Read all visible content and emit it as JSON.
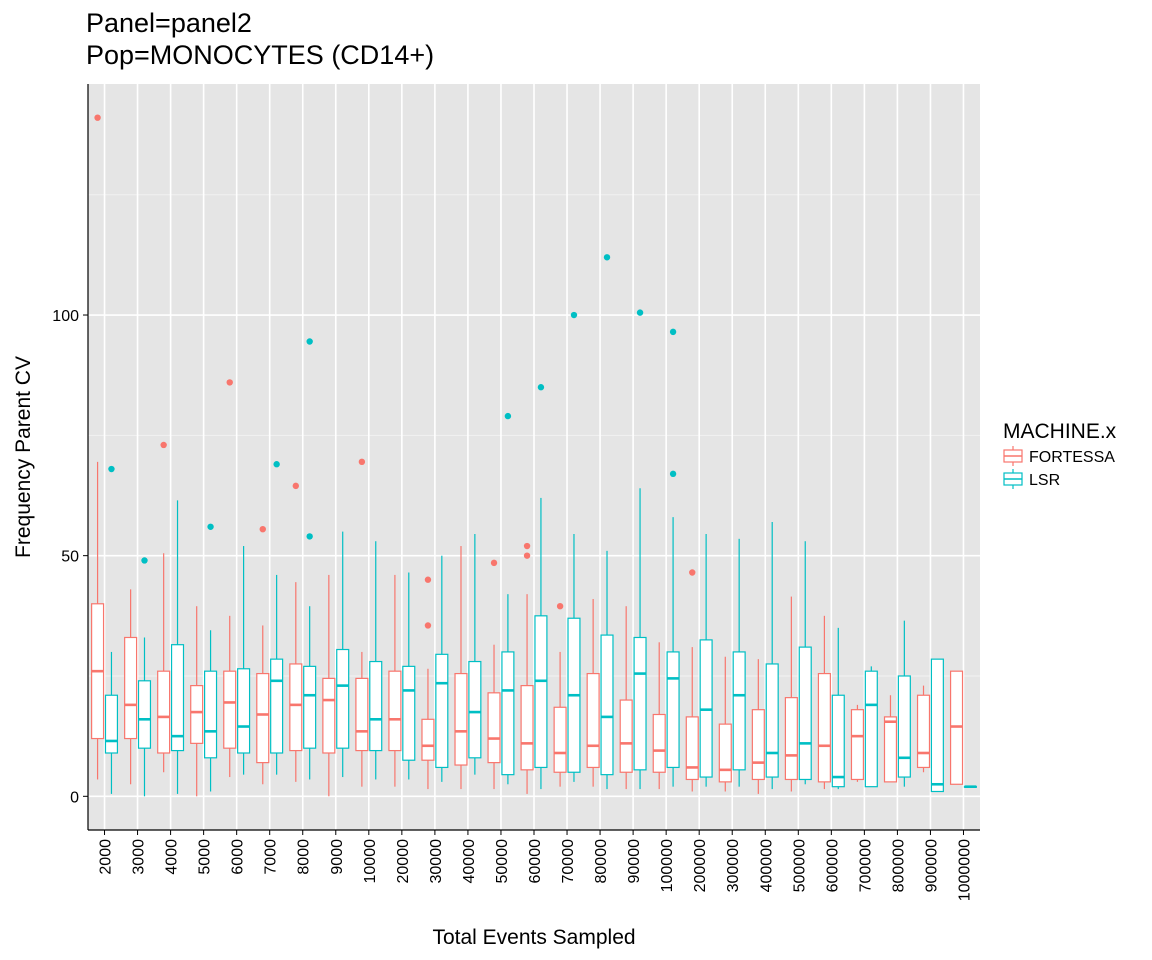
{
  "chart_data": {
    "type": "boxplot",
    "title": "Panel=panel2",
    "subtitle": "Pop=MONOCYTES (CD14+)",
    "xlabel": "Total Events Sampled",
    "ylabel": "Frequency Parent CV",
    "ylim": [
      -7,
      148
    ],
    "yticks": [
      0,
      50,
      100
    ],
    "grid": true,
    "legend": {
      "title": "MACHINE.x",
      "position": "right"
    },
    "categories": [
      "2000",
      "3000",
      "4000",
      "5000",
      "6000",
      "7000",
      "8000",
      "9000",
      "10000",
      "20000",
      "30000",
      "40000",
      "50000",
      "60000",
      "70000",
      "80000",
      "90000",
      "100000",
      "200000",
      "300000",
      "400000",
      "500000",
      "600000",
      "700000",
      "800000",
      "900000",
      "1000000"
    ],
    "colors": {
      "FORTESSA": "#F8766D",
      "LSR": "#00BFC4",
      "panel": "#E5E5E5",
      "grid_major": "#FFFFFF",
      "grid_minor": "#F2F2F2"
    },
    "series": [
      {
        "name": "FORTESSA",
        "boxes": [
          {
            "min": 3.5,
            "q1": 12,
            "median": 26,
            "q3": 40,
            "max": 69.5,
            "outliers": [
              141
            ]
          },
          {
            "min": 2.5,
            "q1": 12,
            "median": 19,
            "q3": 33,
            "max": 43,
            "outliers": []
          },
          {
            "min": 5,
            "q1": 9,
            "median": 16.5,
            "q3": 26,
            "max": 50.5,
            "outliers": [
              73
            ]
          },
          {
            "min": 0,
            "q1": 11,
            "median": 17.5,
            "q3": 23,
            "max": 39.5,
            "outliers": []
          },
          {
            "min": 4,
            "q1": 10,
            "median": 19.5,
            "q3": 26,
            "max": 37.5,
            "outliers": [
              86
            ]
          },
          {
            "min": 2.5,
            "q1": 7,
            "median": 17,
            "q3": 25.5,
            "max": 35.5,
            "outliers": [
              55.5
            ]
          },
          {
            "min": 3,
            "q1": 9.5,
            "median": 19,
            "q3": 27.5,
            "max": 44.5,
            "outliers": [
              64.5
            ]
          },
          {
            "min": 0,
            "q1": 9,
            "median": 20,
            "q3": 24.5,
            "max": 46,
            "outliers": []
          },
          {
            "min": 2,
            "q1": 9.5,
            "median": 13.5,
            "q3": 24.5,
            "max": 30,
            "outliers": [
              69.5
            ]
          },
          {
            "min": 2,
            "q1": 9.5,
            "median": 16,
            "q3": 26,
            "max": 46,
            "outliers": []
          },
          {
            "min": 1.5,
            "q1": 7.5,
            "median": 10.5,
            "q3": 16,
            "max": 26.5,
            "outliers": [
              35.5,
              45
            ]
          },
          {
            "min": 1.5,
            "q1": 6.5,
            "median": 13.5,
            "q3": 25.5,
            "max": 52,
            "outliers": []
          },
          {
            "min": 1.5,
            "q1": 7,
            "median": 12,
            "q3": 21.5,
            "max": 31.5,
            "outliers": [
              48.5
            ]
          },
          {
            "min": 0.5,
            "q1": 5.5,
            "median": 11,
            "q3": 23,
            "max": 42,
            "outliers": [
              50,
              52
            ]
          },
          {
            "min": 2,
            "q1": 5,
            "median": 9,
            "q3": 18.5,
            "max": 30,
            "outliers": [
              39.5
            ]
          },
          {
            "min": 2,
            "q1": 6,
            "median": 10.5,
            "q3": 25.5,
            "max": 41,
            "outliers": []
          },
          {
            "min": 1.5,
            "q1": 5,
            "median": 11,
            "q3": 20,
            "max": 39.5,
            "outliers": []
          },
          {
            "min": 1.5,
            "q1": 5,
            "median": 9.5,
            "q3": 17,
            "max": 32,
            "outliers": []
          },
          {
            "min": 1,
            "q1": 3.5,
            "median": 6,
            "q3": 16.5,
            "max": 31,
            "outliers": [
              46.5
            ]
          },
          {
            "min": 1,
            "q1": 3,
            "median": 5.5,
            "q3": 15,
            "max": 29,
            "outliers": []
          },
          {
            "min": 0.5,
            "q1": 3.5,
            "median": 7,
            "q3": 18,
            "max": 28.5,
            "outliers": []
          },
          {
            "min": 1,
            "q1": 3.5,
            "median": 8.5,
            "q3": 20.5,
            "max": 41.5,
            "outliers": []
          },
          {
            "min": 1.5,
            "q1": 3,
            "median": 10.5,
            "q3": 25.5,
            "max": 37.5,
            "outliers": []
          },
          {
            "min": 3,
            "q1": 3.5,
            "median": 12.5,
            "q3": 18,
            "max": 19,
            "outliers": []
          },
          {
            "min": 3,
            "q1": 3,
            "median": 15.5,
            "q3": 16.5,
            "max": 21,
            "outliers": []
          },
          {
            "min": 5,
            "q1": 6,
            "median": 9,
            "q3": 21,
            "max": 23,
            "outliers": []
          },
          {
            "min": 2.5,
            "q1": 2.5,
            "median": 14.5,
            "q3": 26,
            "max": 26,
            "outliers": []
          }
        ]
      },
      {
        "name": "LSR",
        "boxes": [
          {
            "min": 0.5,
            "q1": 9,
            "median": 11.5,
            "q3": 21,
            "max": 30,
            "outliers": [
              68
            ]
          },
          {
            "min": 0,
            "q1": 10,
            "median": 16,
            "q3": 24,
            "max": 33,
            "outliers": [
              49
            ]
          },
          {
            "min": 0.5,
            "q1": 9.5,
            "median": 12.5,
            "q3": 31.5,
            "max": 61.5,
            "outliers": []
          },
          {
            "min": 1,
            "q1": 8,
            "median": 13.5,
            "q3": 26,
            "max": 34.5,
            "outliers": [
              56
            ]
          },
          {
            "min": 4.5,
            "q1": 9,
            "median": 14.5,
            "q3": 26.5,
            "max": 52,
            "outliers": []
          },
          {
            "min": 4.5,
            "q1": 9,
            "median": 24,
            "q3": 28.5,
            "max": 46,
            "outliers": [
              69
            ]
          },
          {
            "min": 3.5,
            "q1": 10,
            "median": 21,
            "q3": 27,
            "max": 39.5,
            "outliers": [
              54,
              94.5
            ]
          },
          {
            "min": 4,
            "q1": 10,
            "median": 23,
            "q3": 30.5,
            "max": 55,
            "outliers": []
          },
          {
            "min": 3.5,
            "q1": 9.5,
            "median": 16,
            "q3": 28,
            "max": 53,
            "outliers": []
          },
          {
            "min": 3.5,
            "q1": 7.5,
            "median": 22,
            "q3": 27,
            "max": 46.5,
            "outliers": []
          },
          {
            "min": 3,
            "q1": 6,
            "median": 23.5,
            "q3": 29.5,
            "max": 50,
            "outliers": []
          },
          {
            "min": 4.5,
            "q1": 8,
            "median": 17.5,
            "q3": 28,
            "max": 54.5,
            "outliers": []
          },
          {
            "min": 2.5,
            "q1": 4.5,
            "median": 22,
            "q3": 30,
            "max": 42,
            "outliers": [
              79
            ]
          },
          {
            "min": 1.5,
            "q1": 6,
            "median": 24,
            "q3": 37.5,
            "max": 62,
            "outliers": [
              85
            ]
          },
          {
            "min": 3,
            "q1": 5,
            "median": 21,
            "q3": 37,
            "max": 54.5,
            "outliers": [
              100
            ]
          },
          {
            "min": 1.5,
            "q1": 4.5,
            "median": 16.5,
            "q3": 33.5,
            "max": 51,
            "outliers": [
              112
            ]
          },
          {
            "min": 1.5,
            "q1": 5.5,
            "median": 25.5,
            "q3": 33,
            "max": 64,
            "outliers": [
              100.5
            ]
          },
          {
            "min": 2,
            "q1": 6,
            "median": 24.5,
            "q3": 30,
            "max": 58,
            "outliers": [
              67,
              96.5
            ]
          },
          {
            "min": 2,
            "q1": 4,
            "median": 18,
            "q3": 32.5,
            "max": 54.5,
            "outliers": []
          },
          {
            "min": 2,
            "q1": 5.5,
            "median": 21,
            "q3": 30,
            "max": 53.5,
            "outliers": []
          },
          {
            "min": 1.5,
            "q1": 4,
            "median": 9,
            "q3": 27.5,
            "max": 57,
            "outliers": []
          },
          {
            "min": 2.5,
            "q1": 3.5,
            "median": 11,
            "q3": 31,
            "max": 53,
            "outliers": []
          },
          {
            "min": 1.5,
            "q1": 2,
            "median": 4,
            "q3": 21,
            "max": 35,
            "outliers": []
          },
          {
            "min": 2,
            "q1": 2,
            "median": 19,
            "q3": 26,
            "max": 27,
            "outliers": []
          },
          {
            "min": 2,
            "q1": 4,
            "median": 8,
            "q3": 25,
            "max": 36.5,
            "outliers": []
          },
          {
            "min": 1,
            "q1": 1,
            "median": 2.5,
            "q3": 28.5,
            "max": 28.5,
            "outliers": []
          },
          {
            "min": 2,
            "q1": 2,
            "median": 2,
            "q3": 2,
            "max": 2,
            "outliers": []
          }
        ]
      }
    ]
  }
}
